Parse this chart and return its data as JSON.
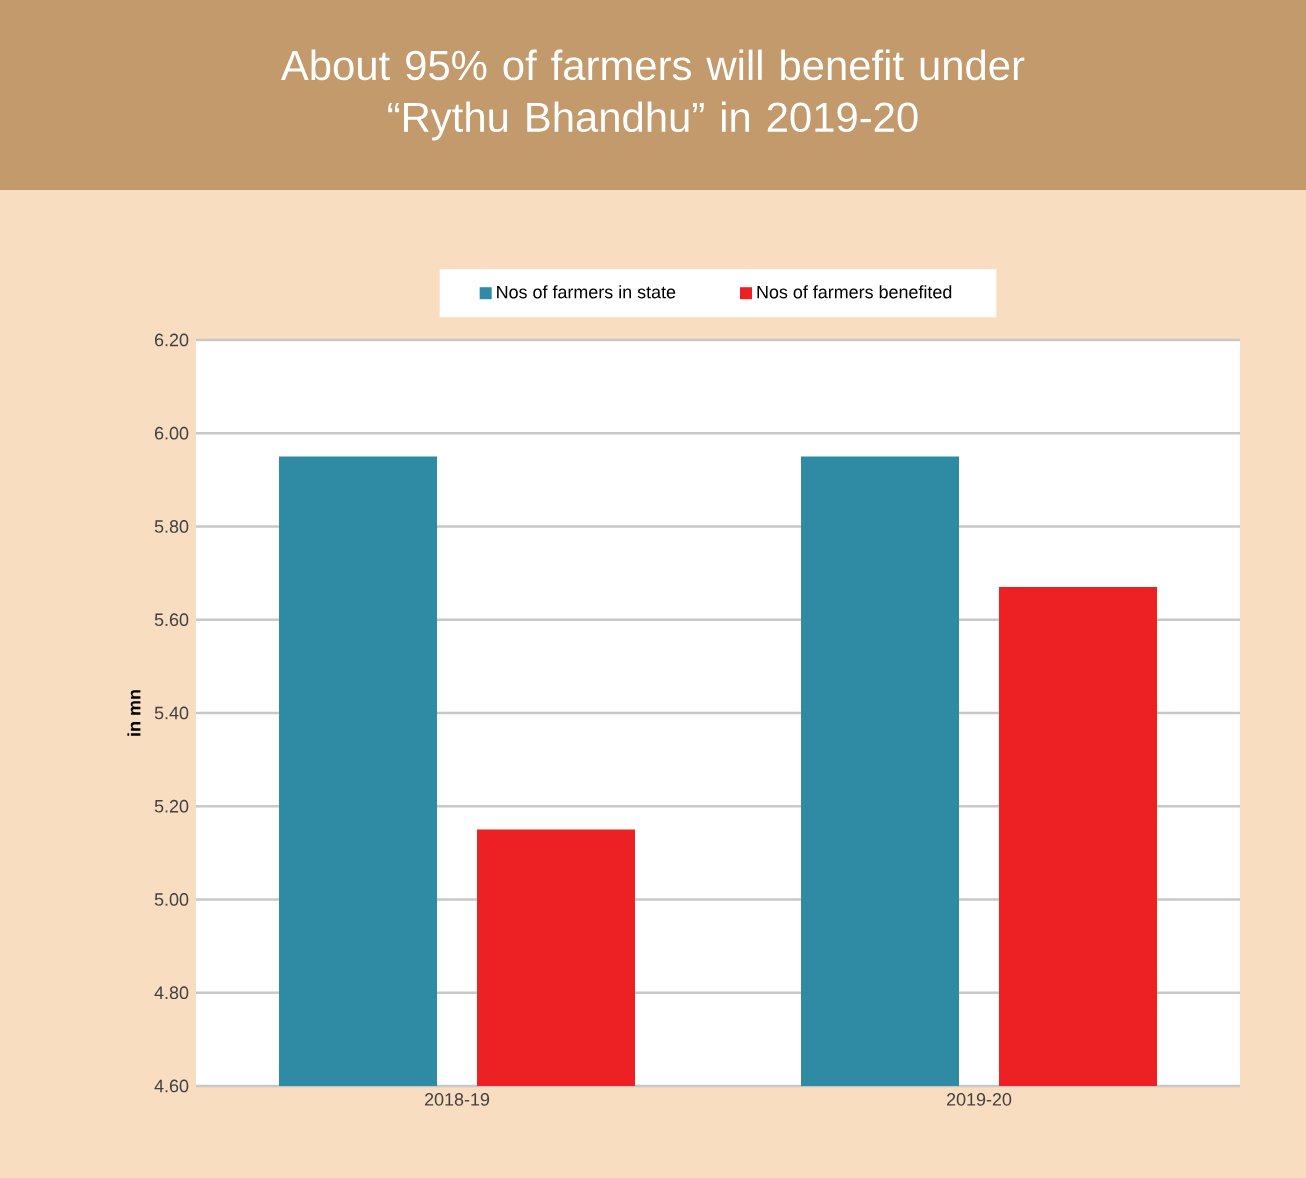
{
  "chart_data": {
    "type": "bar",
    "title": "About 95% of farmers will benefit under\n“Rythu Bhandhu” in 2019-20",
    "ylabel": "in mn",
    "categories": [
      "2018-19",
      "2019-20"
    ],
    "series": [
      {
        "name": "Nos of farmers in state",
        "color": "#2f8aa3",
        "values": [
          5.95,
          5.95
        ]
      },
      {
        "name": "Nos of farmers benefited",
        "color": "#ed2024",
        "values": [
          5.15,
          5.67
        ]
      }
    ],
    "ylim": [
      4.6,
      6.2
    ],
    "yticks": [
      {
        "value": 4.6,
        "label": "4.60"
      },
      {
        "value": 4.8,
        "label": "4.80"
      },
      {
        "value": 5.0,
        "label": "5.00"
      },
      {
        "value": 5.2,
        "label": "5.20"
      },
      {
        "value": 5.4,
        "label": "5.40"
      },
      {
        "value": 5.6,
        "label": "5.60"
      },
      {
        "value": 5.8,
        "label": "5.80"
      },
      {
        "value": 6.0,
        "label": "6.00"
      },
      {
        "value": 6.2,
        "label": "6.20"
      }
    ],
    "grid": "y",
    "legend": "top"
  }
}
